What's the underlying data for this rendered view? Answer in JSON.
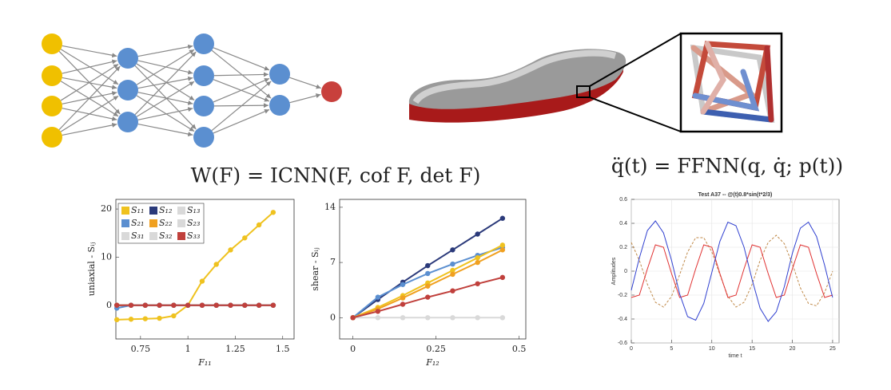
{
  "equations": {
    "left": "W(F) = ICNN(F, cof F, det F)",
    "right": "q̈(t) = FFNN(q, q̇; p(t))"
  },
  "chart_data": [
    {
      "type": "line",
      "markers": true,
      "xlabel": "F₁₁",
      "ylabel": "uniaxial - Sᵢⱼ",
      "x": [
        0.625,
        0.7,
        0.775,
        0.85,
        0.925,
        1.0,
        1.075,
        1.15,
        1.225,
        1.3,
        1.375,
        1.45
      ],
      "xlim": [
        0.62,
        1.56
      ],
      "xticks": [
        0.75,
        1,
        1.25,
        1.5
      ],
      "ylim": [
        -7,
        22
      ],
      "yticks": [
        0,
        10,
        20
      ],
      "legend": "upper left",
      "series": [
        {
          "name": "S₁₃",
          "color": "#d9d9d9",
          "values": [
            0,
            0,
            0,
            0,
            0,
            0,
            0,
            0,
            0,
            0,
            0,
            0
          ]
        },
        {
          "name": "S₂₃",
          "color": "#d9d9d9",
          "values": [
            0,
            0,
            0,
            0,
            0,
            0,
            0,
            0,
            0,
            0,
            0,
            0
          ]
        },
        {
          "name": "S₃₁",
          "color": "#d9d9d9",
          "values": [
            0,
            0,
            0,
            0,
            0,
            0,
            0,
            0,
            0,
            0,
            0,
            0
          ]
        },
        {
          "name": "S₃₂",
          "color": "#d9d9d9",
          "values": [
            0,
            0,
            0,
            0,
            0,
            0,
            0,
            0,
            0,
            0,
            0,
            0
          ]
        },
        {
          "name": "S₁₂",
          "color": "#2b3a7a",
          "values": [
            0,
            0,
            0,
            0,
            0,
            0,
            0,
            0,
            0,
            0,
            0,
            0
          ]
        },
        {
          "name": "S₂₂",
          "color": "#f0a020",
          "values": [
            0,
            0,
            0,
            0,
            0,
            0,
            0,
            0,
            0,
            0,
            0,
            0
          ]
        },
        {
          "name": "S₁₁",
          "color": "#efc21f",
          "values": [
            -3.0,
            -2.9,
            -2.8,
            -2.7,
            -2.2,
            0,
            5.0,
            8.5,
            11.5,
            14.0,
            16.7,
            19.3
          ]
        },
        {
          "name": "S₂₁",
          "color": "#5b8fd0",
          "values": [
            -0.6,
            0,
            0,
            0,
            0,
            0,
            0,
            0,
            0,
            0,
            0,
            0
          ]
        },
        {
          "name": "S₃₃",
          "color": "#c0403c",
          "values": [
            0,
            0,
            0,
            0,
            0,
            0,
            0,
            0,
            0,
            0,
            0,
            0
          ]
        }
      ]
    },
    {
      "type": "line",
      "markers": true,
      "xlabel": "F₁₂",
      "ylabel": "shear - Sᵢⱼ",
      "x": [
        0,
        0.075,
        0.15,
        0.225,
        0.3,
        0.375,
        0.45
      ],
      "xlim": [
        -0.04,
        0.52
      ],
      "xticks": [
        0,
        0.25,
        0.5
      ],
      "ylim": [
        -2.7,
        15
      ],
      "yticks": [
        0,
        7,
        14
      ],
      "series": [
        {
          "color": "#d9d9d9",
          "values": [
            0,
            0,
            0,
            0,
            0,
            0,
            0
          ]
        },
        {
          "color": "#2b3a7a",
          "values": [
            0,
            2.3,
            4.5,
            6.6,
            8.6,
            10.6,
            12.6
          ]
        },
        {
          "color": "#5b8fd0",
          "values": [
            0,
            2.6,
            4.2,
            5.6,
            6.8,
            7.9,
            8.9
          ]
        },
        {
          "color": "#efc21f",
          "values": [
            0,
            1.3,
            2.8,
            4.4,
            6.0,
            7.6,
            9.2
          ]
        },
        {
          "color": "#f0a020",
          "values": [
            0,
            1.1,
            2.5,
            4.0,
            5.5,
            7.0,
            8.6
          ]
        },
        {
          "color": "#c0403c",
          "values": [
            0,
            0.8,
            1.7,
            2.6,
            3.4,
            4.3,
            5.1
          ]
        }
      ]
    },
    {
      "type": "line",
      "markers": false,
      "grid": true,
      "title": "Test A37 -- @(t)0.8*sin(t*2/3)",
      "xlabel": "time t",
      "ylabel": "Amplitudes",
      "x": [
        0,
        1,
        2,
        3,
        4,
        5,
        6,
        7,
        8,
        9,
        10,
        11,
        12,
        13,
        14,
        15,
        16,
        17,
        18,
        19,
        20,
        21,
        22,
        23,
        24,
        25
      ],
      "xlim": [
        0,
        25.8
      ],
      "xticks": [
        0,
        5,
        10,
        15,
        20,
        25
      ],
      "ylim": [
        -0.6,
        0.6
      ],
      "yticks": [
        -0.6,
        -0.4,
        -0.2,
        0,
        0.2,
        0.4,
        0.6
      ],
      "series": [
        {
          "color": "#c08a4a",
          "dashed": true,
          "values": [
            0.24,
            0.09,
            -0.11,
            -0.26,
            -0.3,
            -0.21,
            -0.03,
            0.16,
            0.28,
            0.28,
            0.16,
            -0.03,
            -0.21,
            -0.3,
            -0.26,
            -0.11,
            0.09,
            0.24,
            0.3,
            0.23,
            0.06,
            -0.14,
            -0.27,
            -0.29,
            -0.18,
            0.0
          ]
        },
        {
          "color": "#e03030",
          "values": [
            -0.22,
            -0.2,
            0.02,
            0.22,
            0.2,
            -0.02,
            -0.22,
            -0.2,
            0.02,
            0.22,
            0.2,
            -0.02,
            -0.22,
            -0.2,
            0.02,
            0.22,
            0.2,
            -0.02,
            -0.22,
            -0.2,
            0.02,
            0.22,
            0.2,
            -0.02,
            -0.22,
            -0.2
          ]
        },
        {
          "color": "#3040d0",
          "values": [
            -0.16,
            0.11,
            0.34,
            0.42,
            0.32,
            0.09,
            -0.19,
            -0.38,
            -0.41,
            -0.27,
            -0.01,
            0.25,
            0.41,
            0.38,
            0.2,
            -0.07,
            -0.31,
            -0.42,
            -0.34,
            -0.13,
            0.15,
            0.36,
            0.41,
            0.29,
            0.05,
            -0.22
          ]
        }
      ]
    }
  ]
}
